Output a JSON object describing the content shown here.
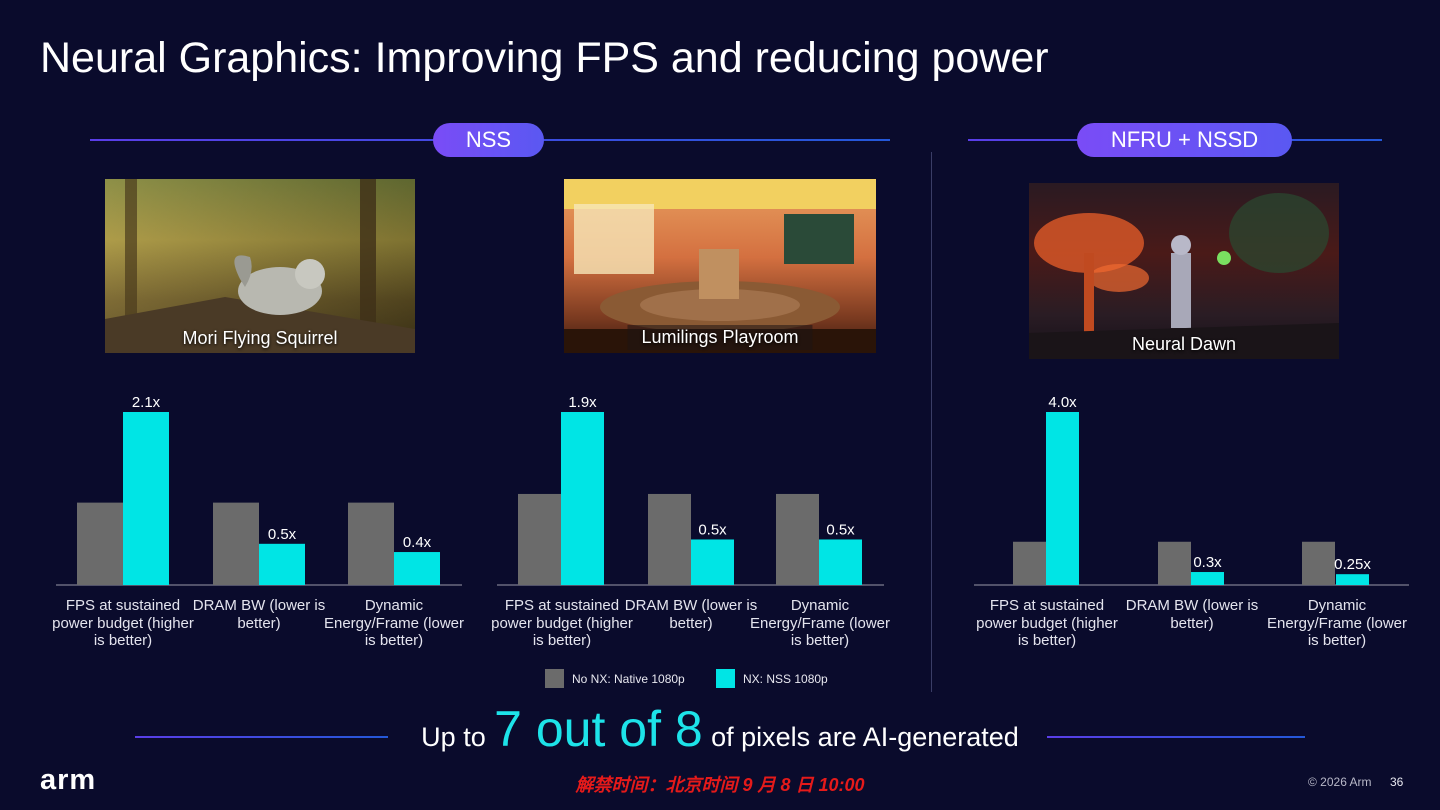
{
  "slide": {
    "title": "Neural Graphics: Improving FPS and reducing power",
    "page_number": "36",
    "copyright": "© 2026 Arm",
    "logo": "arm",
    "embargo": "解禁时间：北京时间 9 月 8 日 10:00"
  },
  "sections": [
    {
      "label": "NSS"
    },
    {
      "label": "NFRU + NSSD"
    }
  ],
  "screenshots": [
    {
      "caption": "Mori Flying Squirrel"
    },
    {
      "caption": "Lumilings Playroom"
    },
    {
      "caption": "Neural Dawn"
    }
  ],
  "legend": {
    "baseline": "No NX: Native 1080p",
    "nx": "NX: NSS 1080p"
  },
  "headline": {
    "prefix": "Up to",
    "highlight": "7 out of 8",
    "suffix": "of pixels are AI-generated"
  },
  "colors": {
    "baseline": "#6b6b6b",
    "nx": "#00e5e5",
    "accent": "#1de3e9",
    "pill": "#6a52f4",
    "background": "#0a0b2c",
    "embargo": "#e51a1a"
  },
  "chart_data": [
    {
      "type": "bar",
      "group": "Mori Flying Squirrel",
      "categories": [
        "FPS at sustained power budget (higher is better)",
        "DRAM BW (lower is better)",
        "Dynamic Energy/Frame (lower is better)"
      ],
      "series": [
        {
          "name": "No NX: Native 1080p",
          "values": [
            1,
            1,
            1
          ]
        },
        {
          "name": "NX: NSS 1080p",
          "values": [
            2.1,
            0.5,
            0.4
          ]
        }
      ],
      "data_labels": [
        "2.1x",
        "0.5x",
        "0.4x"
      ],
      "ylim": [
        0,
        2.1
      ]
    },
    {
      "type": "bar",
      "group": "Lumilings Playroom",
      "categories": [
        "FPS at sustained power budget (higher is better)",
        "DRAM BW (lower is better)",
        "Dynamic Energy/Frame (lower is better)"
      ],
      "series": [
        {
          "name": "No NX: Native 1080p",
          "values": [
            1,
            1,
            1
          ]
        },
        {
          "name": "NX: NSS 1080p",
          "values": [
            1.9,
            0.5,
            0.5
          ]
        }
      ],
      "data_labels": [
        "1.9x",
        "0.5x",
        "0.5x"
      ],
      "ylim": [
        0,
        1.9
      ]
    },
    {
      "type": "bar",
      "group": "Neural Dawn",
      "categories": [
        "FPS at sustained power budget (higher is better)",
        "DRAM BW (lower is better)",
        "Dynamic Energy/Frame (lower is better)"
      ],
      "series": [
        {
          "name": "No NX: Native 1080p",
          "values": [
            1,
            1,
            1
          ]
        },
        {
          "name": "NX: NSS 1080p",
          "values": [
            4.0,
            0.3,
            0.25
          ]
        }
      ],
      "data_labels": [
        "4.0x",
        "0.3x",
        "0.25x"
      ],
      "ylim": [
        0,
        4.0
      ]
    }
  ]
}
